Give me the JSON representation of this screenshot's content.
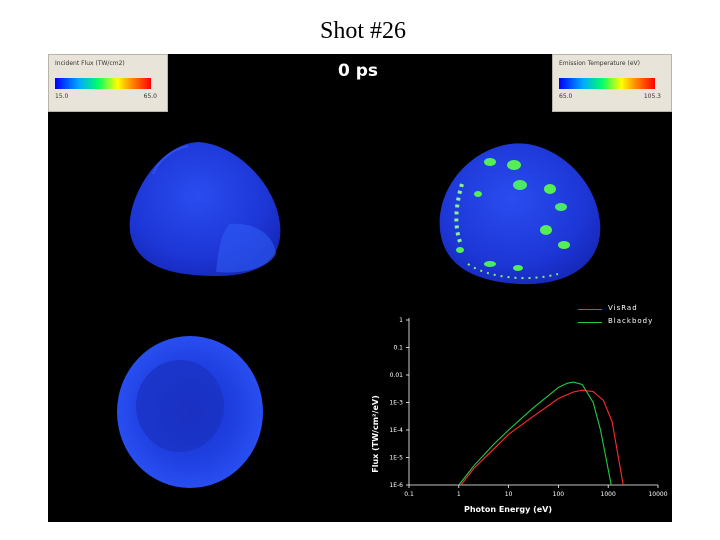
{
  "slide": {
    "title": "Shot #26"
  },
  "panel": {
    "time_label": "0 ps"
  },
  "colorbar_left": {
    "title": "Incident Flux (TW/cm2)",
    "min": "15.0",
    "max": "65.0"
  },
  "colorbar_right": {
    "title": "Emission Temperature (eV)",
    "min": "65.0",
    "max": "105.3"
  },
  "colors": {
    "visrad": "#ff2a2a",
    "blackbody": "#22cc44",
    "capsule_blue": "#1f3fdd",
    "hot_spot_green": "#55ee55"
  },
  "chart_data": {
    "type": "line",
    "xlabel": "Photon Energy (eV)",
    "ylabel": "Flux (TW/cm²/eV)",
    "x_scale": "log",
    "y_scale": "log",
    "xlim": [
      0.1,
      10000
    ],
    "ylim": [
      1e-06,
      1
    ],
    "x_ticks": [
      {
        "value": 0.1,
        "label": "0.1"
      },
      {
        "value": 1,
        "label": "1"
      },
      {
        "value": 10,
        "label": "10"
      },
      {
        "value": 100,
        "label": "100"
      },
      {
        "value": 1000,
        "label": "1000"
      },
      {
        "value": 10000,
        "label": "10000"
      }
    ],
    "y_ticks": [
      {
        "value": 1,
        "label": "1"
      },
      {
        "value": 0.1,
        "label": "0.1"
      },
      {
        "value": 0.01,
        "label": "0.01"
      },
      {
        "value": 0.001,
        "label": "1E-3"
      },
      {
        "value": 0.0001,
        "label": "1E-4"
      },
      {
        "value": 1e-05,
        "label": "1E-5"
      },
      {
        "value": 1e-06,
        "label": "1E-6"
      }
    ],
    "grid": false,
    "legend_position": "top-right",
    "series": [
      {
        "name": "VisRad",
        "color": "#ff2a2a",
        "x": [
          1.1,
          2,
          5,
          10,
          30,
          100,
          200,
          300,
          500,
          800,
          1200,
          1600,
          2000
        ],
        "y": [
          1e-06,
          4e-06,
          2e-05,
          7e-05,
          0.0003,
          0.0014,
          0.0024,
          0.0028,
          0.0025,
          0.0012,
          0.0002,
          1e-05,
          1e-06
        ]
      },
      {
        "name": "Blackbody",
        "color": "#22cc44",
        "x": [
          1,
          2,
          5,
          10,
          30,
          100,
          150,
          200,
          300,
          500,
          700,
          900,
          1150
        ],
        "y": [
          1e-06,
          5e-06,
          3e-05,
          0.0001,
          0.0006,
          0.0035,
          0.005,
          0.0055,
          0.0045,
          0.001,
          0.0001,
          1e-05,
          1e-06
        ]
      }
    ]
  }
}
